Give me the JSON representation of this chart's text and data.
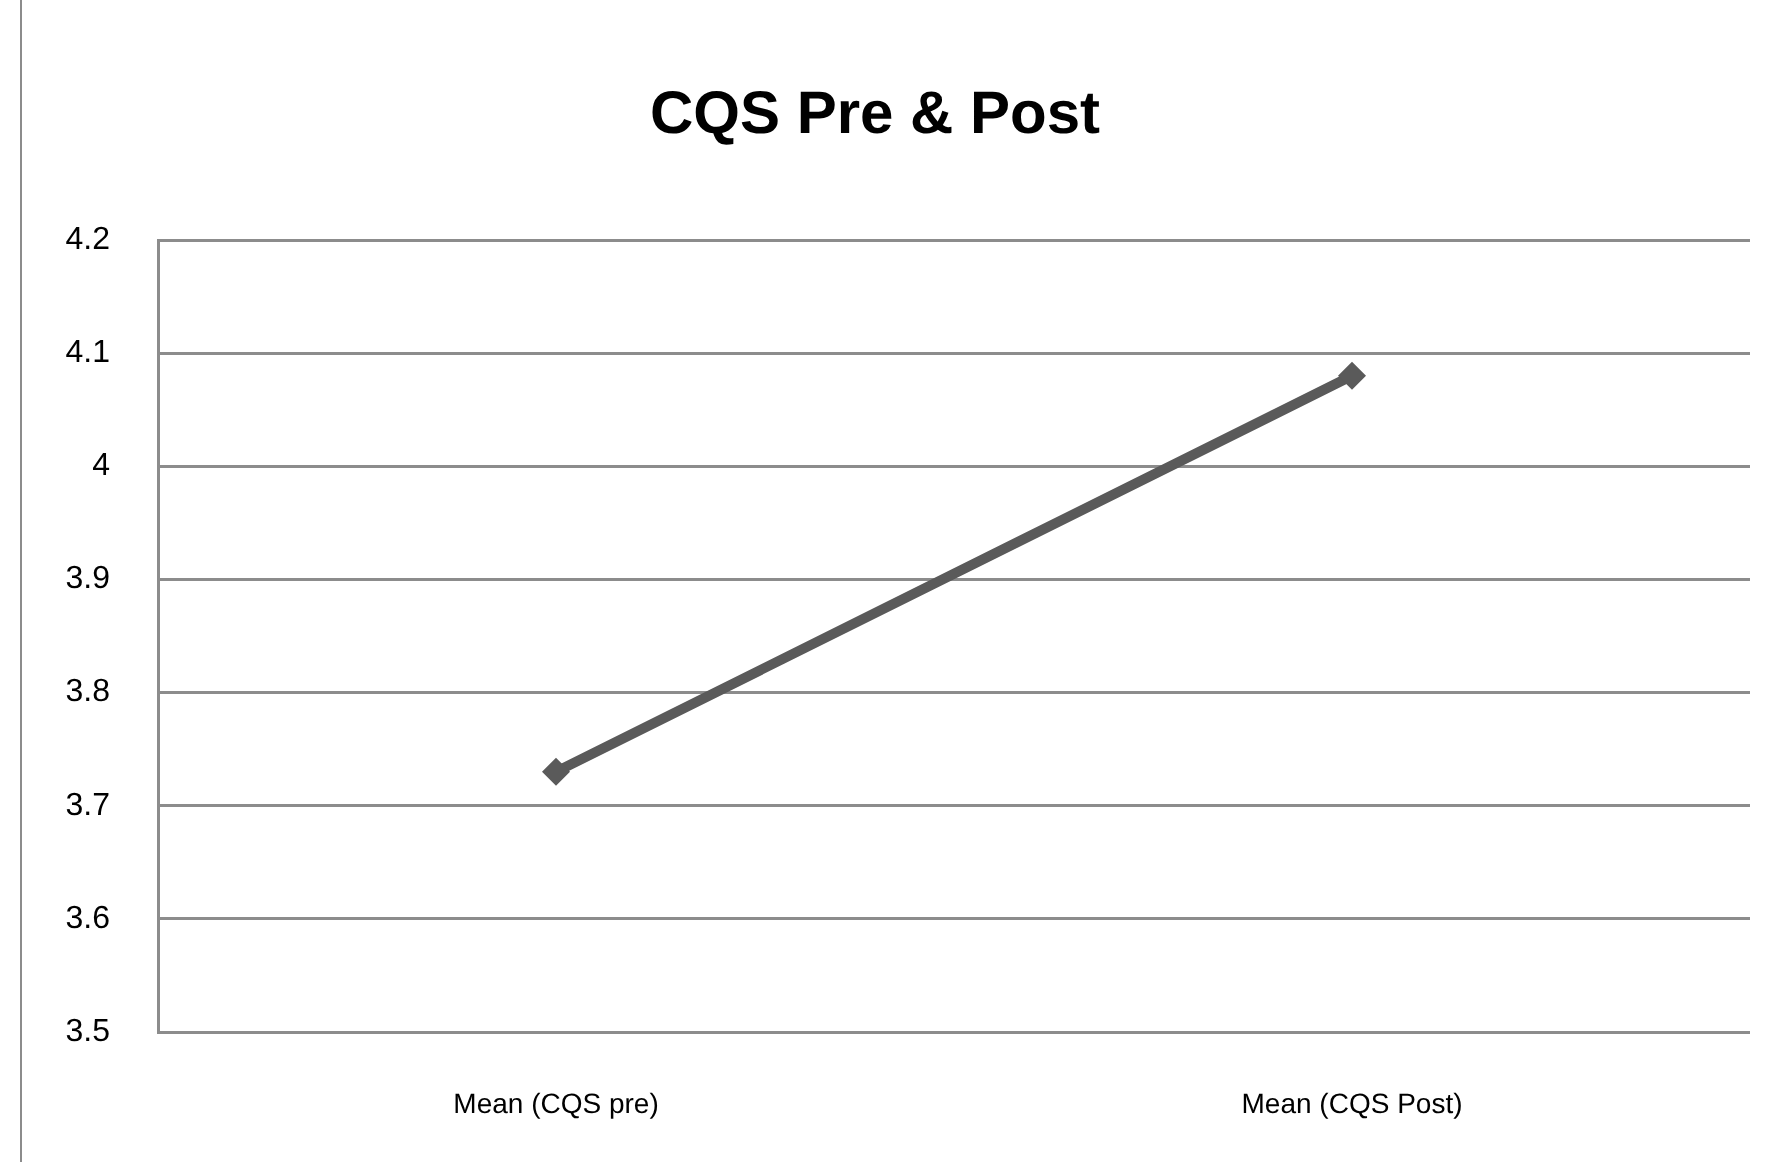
{
  "chart_data": {
    "type": "line",
    "title": "CQS Pre & Post",
    "categories": [
      "Mean (CQS pre)",
      "Mean (CQS Post)"
    ],
    "values": [
      3.73,
      4.08
    ],
    "color": "#5a5a5a",
    "ylim": [
      3.5,
      4.2
    ],
    "yticks": [
      3.5,
      3.6,
      3.7,
      3.8,
      3.9,
      4,
      4.1,
      4.2
    ],
    "grid": "y",
    "marker": "diamond",
    "line_style": "solid"
  }
}
